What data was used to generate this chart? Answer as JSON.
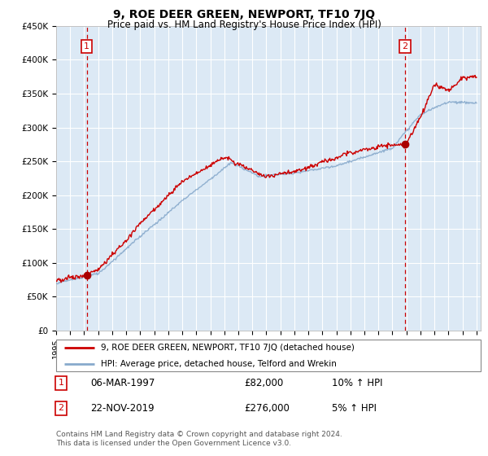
{
  "title": "9, ROE DEER GREEN, NEWPORT, TF10 7JQ",
  "subtitle": "Price paid vs. HM Land Registry's House Price Index (HPI)",
  "legend_line1": "9, ROE DEER GREEN, NEWPORT, TF10 7JQ (detached house)",
  "legend_line2": "HPI: Average price, detached house, Telford and Wrekin",
  "footnote": "Contains HM Land Registry data © Crown copyright and database right 2024.\nThis data is licensed under the Open Government Licence v3.0.",
  "table_rows": [
    {
      "num": "1",
      "date": "06-MAR-1997",
      "price": "£82,000",
      "hpi": "10% ↑ HPI"
    },
    {
      "num": "2",
      "date": "22-NOV-2019",
      "price": "£276,000",
      "hpi": "5% ↑ HPI"
    }
  ],
  "ylim": [
    0,
    450000
  ],
  "yticks": [
    0,
    50000,
    100000,
    150000,
    200000,
    250000,
    300000,
    350000,
    400000,
    450000
  ],
  "ytick_labels": [
    "£0",
    "£50K",
    "£100K",
    "£150K",
    "£200K",
    "£250K",
    "£300K",
    "£350K",
    "£400K",
    "£450K"
  ],
  "background_color": "#dce9f5",
  "grid_color": "#c8d8ea",
  "line_color_red": "#cc0000",
  "line_color_blue": "#88aacc",
  "marker_color": "#aa0000",
  "annotation_box_color": "#cc0000",
  "x_start_year": 1995,
  "x_end_year": 2025,
  "sale1_year": 1997.18,
  "sale1_price": 82000,
  "sale2_year": 2019.9,
  "sale2_price": 276000
}
